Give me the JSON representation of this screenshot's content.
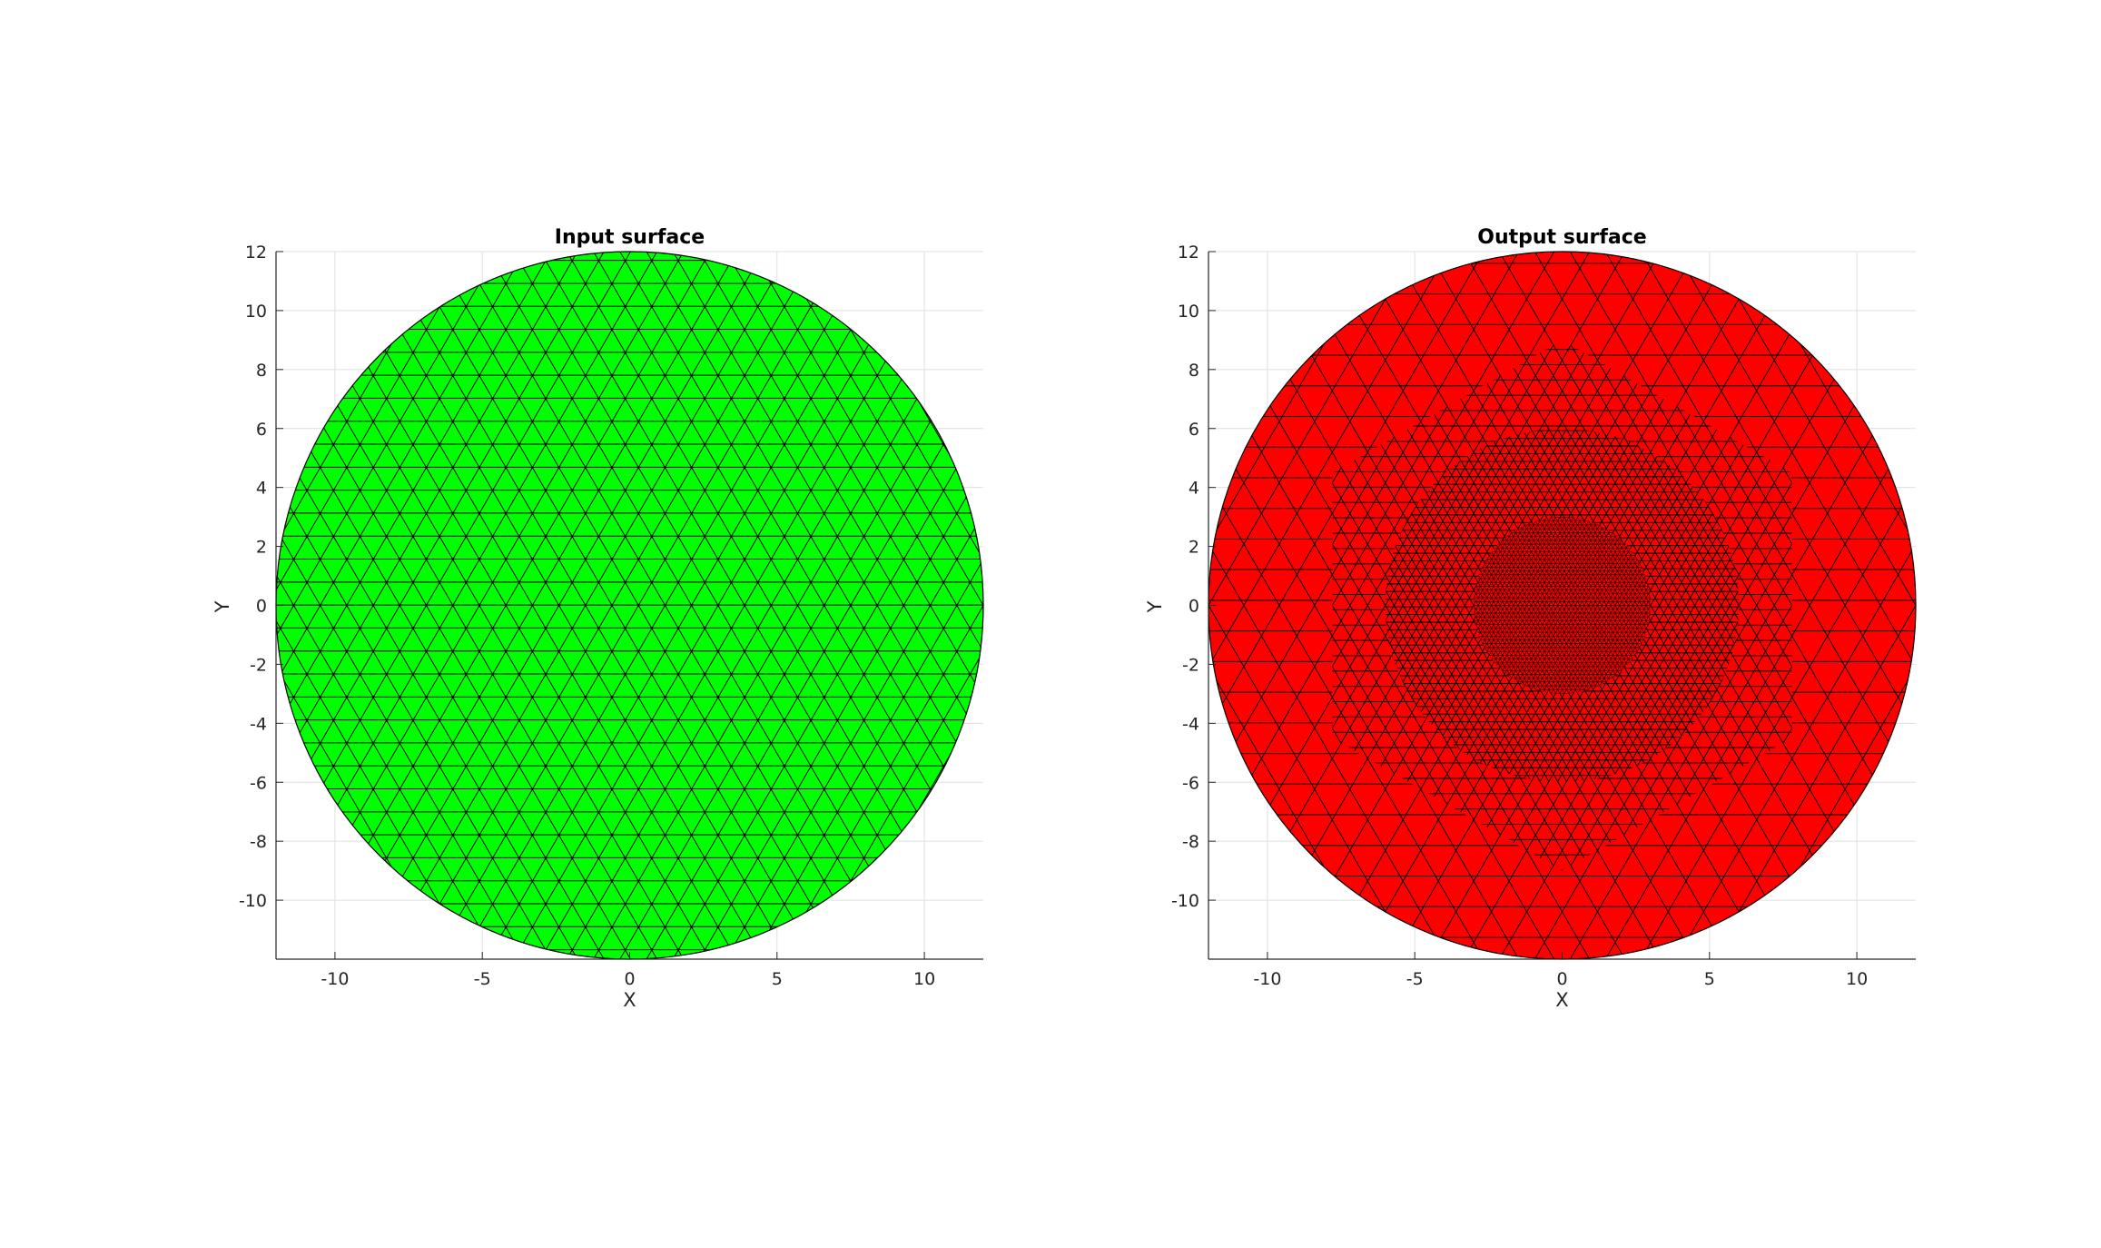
{
  "chart_data": [
    {
      "type": "mesh",
      "title": "Input surface",
      "xlabel": "X",
      "ylabel": "Y",
      "xlim": [
        -12,
        12
      ],
      "ylim": [
        -12,
        12
      ],
      "xticks": [
        -10,
        -5,
        0,
        5,
        10
      ],
      "yticks": [
        12,
        10,
        8,
        6,
        4,
        2,
        0,
        -2,
        -4,
        -6,
        -8,
        -10
      ],
      "grid": true,
      "face_color": "#00ff00",
      "edge_color": "#000000",
      "shape": "disc",
      "radius": 12,
      "regions": [
        {
          "radius": 12,
          "edge_length": 0.9
        }
      ]
    },
    {
      "type": "mesh",
      "title": "Output surface",
      "xlabel": "X",
      "ylabel": "Y",
      "xlim": [
        -12,
        12
      ],
      "ylim": [
        -12,
        12
      ],
      "xticks": [
        -10,
        -5,
        0,
        5,
        10
      ],
      "yticks": [
        12,
        10,
        8,
        6,
        4,
        2,
        0,
        -2,
        -4,
        -6,
        -8,
        -10
      ],
      "grid": true,
      "face_color": "#ff0000",
      "edge_color": "#000000",
      "shape": "disc",
      "radius": 12,
      "regions": [
        {
          "radius": 12,
          "edge_length": 1.2,
          "shape": "circle"
        },
        {
          "radius": 9,
          "edge_length": 0.6,
          "shape": "hexagon"
        },
        {
          "radius": 6,
          "edge_length": 0.3,
          "shape": "circle"
        },
        {
          "radius": 3,
          "edge_length": 0.15,
          "shape": "circle"
        }
      ]
    }
  ]
}
